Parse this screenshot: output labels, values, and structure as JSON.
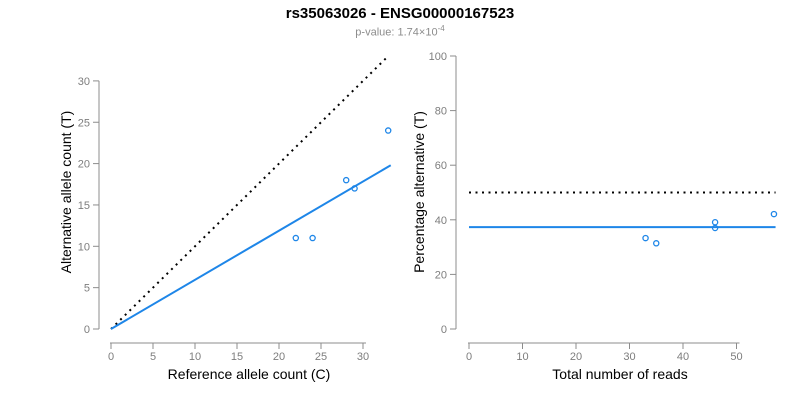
{
  "header": {
    "title": "rs35063026 - ENSG00000167523",
    "subtitle_base": "p-value: 1.74×10",
    "subtitle_exponent": "-4"
  },
  "colors": {
    "accent": "#1E86E8",
    "identity": "#000000",
    "axis": "#8C8C8C",
    "tick_label": "#7D7D7D"
  },
  "chart_data": [
    {
      "type": "scatter",
      "xlabel": "Reference allele count (C)",
      "ylabel": "Alternative allele count (T)",
      "xticks": [
        0,
        5,
        10,
        15,
        20,
        25,
        30
      ],
      "yticks": [
        0,
        5,
        10,
        15,
        20,
        25,
        30
      ],
      "xlim": [
        0,
        34
      ],
      "ylim": [
        0,
        33.2
      ],
      "grid": false,
      "legend": false,
      "points": [
        [
          22,
          11
        ],
        [
          24,
          11
        ],
        [
          28,
          18
        ],
        [
          29,
          17
        ],
        [
          33,
          24
        ]
      ],
      "lines": [
        {
          "name": "identity-line",
          "style": "dotted",
          "color_key": "identity",
          "x": [
            0,
            33.0
          ],
          "y": [
            0,
            33.0
          ]
        },
        {
          "name": "fit-line",
          "style": "solid",
          "color_key": "accent",
          "x": [
            0,
            33.3
          ],
          "y": [
            0,
            19.8
          ]
        }
      ]
    },
    {
      "type": "scatter",
      "xlabel": "Total number of reads",
      "ylabel": "Percentage alternative (T)",
      "xticks": [
        0,
        10,
        20,
        30,
        40,
        50
      ],
      "yticks": [
        0,
        20,
        40,
        60,
        80,
        100
      ],
      "xlim": [
        0,
        57.5
      ],
      "ylim": [
        0,
        100
      ],
      "grid": false,
      "legend": false,
      "points": [
        [
          33,
          33.3
        ],
        [
          35,
          31.4
        ],
        [
          46,
          39.1
        ],
        [
          46,
          37.0
        ],
        [
          57,
          42.1
        ]
      ],
      "lines": [
        {
          "name": "expected-line",
          "style": "dotted",
          "color_key": "identity",
          "x": [
            0,
            57.3
          ],
          "y": [
            50,
            50
          ]
        },
        {
          "name": "fit-line",
          "style": "solid",
          "color_key": "accent",
          "x": [
            0,
            57.3
          ],
          "y": [
            37.3,
            37.3
          ]
        }
      ]
    }
  ]
}
